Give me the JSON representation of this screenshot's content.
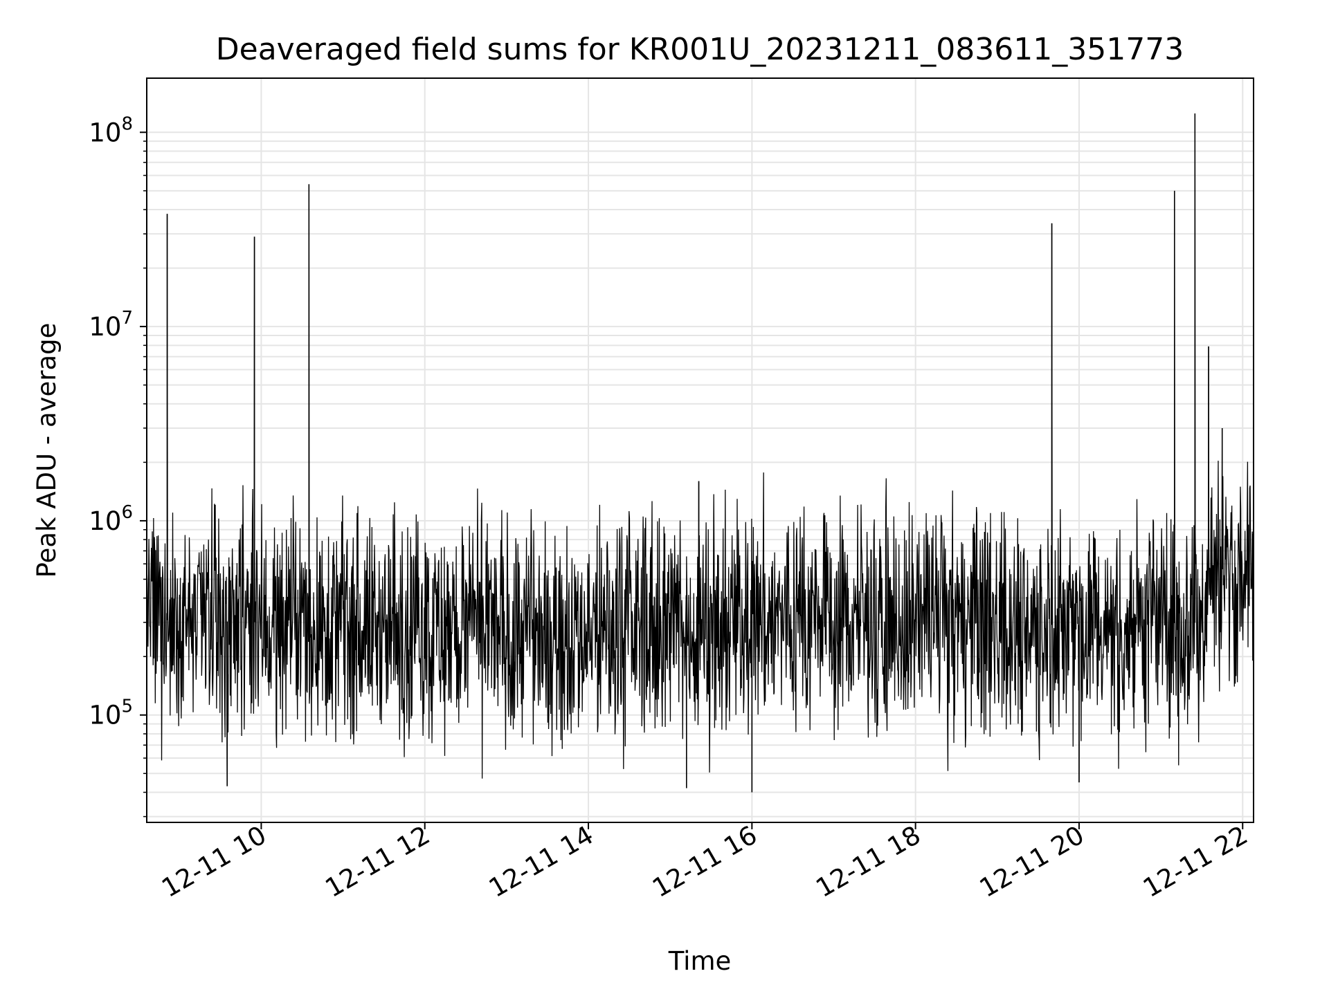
{
  "chart_data": {
    "type": "line",
    "title": "Deaveraged field sums for KR001U_20231211_083611_351773",
    "xlabel": "Time",
    "ylabel": "Peak ADU - average",
    "x_type": "datetime",
    "xlim": [
      "2023-12-11T08:36",
      "2023-12-11T22:08"
    ],
    "ylim": [
      28000,
      190000000
    ],
    "yscale": "log",
    "grid": true,
    "line_color": "#000000",
    "grid_color": "#e5e5e5",
    "x_ticks": [
      {
        "value": "2023-12-11T10:00",
        "label": "12-11 10"
      },
      {
        "value": "2023-12-11T12:00",
        "label": "12-11 12"
      },
      {
        "value": "2023-12-11T14:00",
        "label": "12-11 14"
      },
      {
        "value": "2023-12-11T16:00",
        "label": "12-11 16"
      },
      {
        "value": "2023-12-11T18:00",
        "label": "12-11 18"
      },
      {
        "value": "2023-12-11T20:00",
        "label": "12-11 20"
      },
      {
        "value": "2023-12-11T22:00",
        "label": "12-11 22"
      }
    ],
    "y_ticks": [
      {
        "value": 100000,
        "base": "10",
        "exp": "5"
      },
      {
        "value": 1000000,
        "base": "10",
        "exp": "6"
      },
      {
        "value": 10000000,
        "base": "10",
        "exp": "7"
      },
      {
        "value": 100000000,
        "base": "10",
        "exp": "8"
      }
    ],
    "baseline": [
      {
        "x": "2023-12-11T08:36",
        "y": 310000
      },
      {
        "x": "2023-12-11T10:00",
        "y": 300000
      },
      {
        "x": "2023-12-11T12:00",
        "y": 275000
      },
      {
        "x": "2023-12-11T14:00",
        "y": 260000
      },
      {
        "x": "2023-12-11T16:00",
        "y": 310000
      },
      {
        "x": "2023-12-11T18:00",
        "y": 300000
      },
      {
        "x": "2023-12-11T20:00",
        "y": 290000
      },
      {
        "x": "2023-12-11T21:33",
        "y": 300000
      },
      {
        "x": "2023-12-11T21:34",
        "y": 560000
      },
      {
        "x": "2023-12-11T22:08",
        "y": 570000
      }
    ],
    "peaks": [
      {
        "x": "2023-12-11T08:51",
        "y": 38000000
      },
      {
        "x": "2023-12-11T09:55",
        "y": 29000000
      },
      {
        "x": "2023-12-11T10:35",
        "y": 54000000
      },
      {
        "x": "2023-12-11T15:21",
        "y": 1600000
      },
      {
        "x": "2023-12-11T19:40",
        "y": 34000000
      },
      {
        "x": "2023-12-11T21:10",
        "y": 50000000
      },
      {
        "x": "2023-12-11T21:25",
        "y": 125000000
      },
      {
        "x": "2023-12-11T21:35",
        "y": 7900000
      },
      {
        "x": "2023-12-11T21:45",
        "y": 3000000
      }
    ],
    "dips": [
      {
        "x": "2023-12-11T09:35",
        "y": 43000
      },
      {
        "x": "2023-12-11T15:12",
        "y": 42000
      },
      {
        "x": "2023-12-11T16:00",
        "y": 40000
      },
      {
        "x": "2023-12-11T20:00",
        "y": 45000
      }
    ]
  }
}
